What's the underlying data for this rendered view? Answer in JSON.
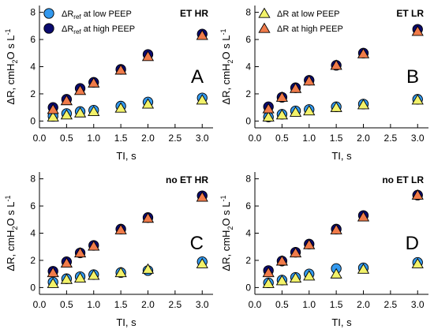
{
  "colors": {
    "low_circle": "#3399ee",
    "high_circle": "#0a0a6e",
    "low_triangle": "#f2f26a",
    "high_triangle": "#f07b4a"
  },
  "chart_data": [
    {
      "type": "scatter",
      "title": "ET HR",
      "panel_letter": "A",
      "xlabel": "TI, s",
      "ylabel": "ΔR, cmH2O s L-1",
      "xlim": [
        0,
        3.2
      ],
      "ylim": [
        -0.5,
        8.5
      ],
      "xticks": [
        "0.0",
        "0.5",
        "1.0",
        "1.5",
        "2.0",
        "2.5",
        "3.0"
      ],
      "yticks": [
        "0",
        "2",
        "4",
        "6",
        "8"
      ],
      "legend": {
        "position": "top-left",
        "entries": [
          "ΔRref at low PEEP",
          "ΔRref at high PEEP"
        ]
      },
      "x": [
        0.25,
        0.5,
        0.75,
        1.0,
        1.5,
        2.0,
        3.0
      ],
      "series": [
        {
          "name": "ΔRref at low PEEP",
          "marker": "circle",
          "color_key": "low_circle",
          "values": [
            0.35,
            0.55,
            0.7,
            0.8,
            1.1,
            1.4,
            1.7
          ]
        },
        {
          "name": "ΔRref at high PEEP",
          "marker": "circle",
          "color_key": "high_circle",
          "values": [
            1.0,
            1.6,
            2.4,
            2.85,
            3.8,
            4.9,
            6.4
          ]
        },
        {
          "marker": "triangle",
          "color_key": "low_triangle",
          "values": [
            0.3,
            0.45,
            0.6,
            0.7,
            0.95,
            1.25,
            1.55
          ]
        },
        {
          "marker": "triangle",
          "color_key": "high_triangle",
          "values": [
            0.85,
            1.5,
            2.25,
            2.8,
            3.75,
            4.75,
            6.3
          ]
        }
      ]
    },
    {
      "type": "scatter",
      "title": "ET LR",
      "panel_letter": "B",
      "xlabel": "TI, s",
      "ylabel": "ΔR, cmH2O s L-1",
      "xlim": [
        0,
        3.2
      ],
      "ylim": [
        -0.5,
        8.5
      ],
      "xticks": [
        "0.0",
        "0.5",
        "1.0",
        "1.5",
        "2.0",
        "2.5",
        "3.0"
      ],
      "yticks": [
        "0",
        "2",
        "4",
        "6",
        "8"
      ],
      "legend": {
        "position": "top-left",
        "entries": [
          "ΔR at low PEEP",
          "ΔR at high PEEP"
        ]
      },
      "x": [
        0.25,
        0.5,
        0.75,
        1.0,
        1.5,
        2.0,
        3.0
      ],
      "series": [
        {
          "marker": "circle",
          "color_key": "low_circle",
          "values": [
            0.3,
            0.5,
            0.75,
            0.85,
            1.05,
            1.25,
            1.6
          ]
        },
        {
          "marker": "circle",
          "color_key": "high_circle",
          "values": [
            1.05,
            1.75,
            2.45,
            3.0,
            4.1,
            5.0,
            6.75
          ]
        },
        {
          "name": "ΔR at low PEEP",
          "marker": "triangle",
          "color_key": "low_triangle",
          "values": [
            0.3,
            0.45,
            0.65,
            0.75,
            1.0,
            1.2,
            1.55
          ]
        },
        {
          "name": "ΔR at high PEEP",
          "marker": "triangle",
          "color_key": "high_triangle",
          "values": [
            0.9,
            1.75,
            2.4,
            2.95,
            4.1,
            4.95,
            6.6
          ]
        }
      ]
    },
    {
      "type": "scatter",
      "title": "no ET HR",
      "panel_letter": "C",
      "xlabel": "TI, s",
      "ylabel": "ΔR, cmH2O s L-1",
      "xlim": [
        0,
        3.2
      ],
      "ylim": [
        -0.5,
        8.5
      ],
      "xticks": [
        "0.0",
        "0.5",
        "1.0",
        "1.5",
        "2.0",
        "2.5",
        "3.0"
      ],
      "yticks": [
        "0",
        "2",
        "4",
        "6",
        "8"
      ],
      "x": [
        0.25,
        0.5,
        0.75,
        1.0,
        1.5,
        2.0,
        3.0
      ],
      "series": [
        {
          "marker": "circle",
          "color_key": "low_circle",
          "values": [
            0.4,
            0.65,
            0.8,
            0.95,
            1.1,
            1.25,
            1.9
          ]
        },
        {
          "marker": "circle",
          "color_key": "high_circle",
          "values": [
            1.2,
            1.9,
            2.55,
            3.1,
            4.3,
            5.15,
            6.75
          ]
        },
        {
          "marker": "triangle",
          "color_key": "low_triangle",
          "values": [
            0.3,
            0.6,
            0.7,
            0.9,
            1.1,
            1.35,
            1.75
          ]
        },
        {
          "marker": "triangle",
          "color_key": "high_triangle",
          "values": [
            1.1,
            1.8,
            2.55,
            3.05,
            4.25,
            5.1,
            6.65
          ]
        }
      ]
    },
    {
      "type": "scatter",
      "title": "no ET LR",
      "panel_letter": "D",
      "xlabel": "TI, s",
      "ylabel": "ΔR, cmH2O s L-1",
      "xlim": [
        0,
        3.2
      ],
      "ylim": [
        -0.5,
        8.5
      ],
      "xticks": [
        "0.0",
        "0.5",
        "1.0",
        "1.5",
        "2.0",
        "2.5",
        "3.0"
      ],
      "yticks": [
        "0",
        "2",
        "4",
        "6",
        "8"
      ],
      "x": [
        0.25,
        0.5,
        0.75,
        1.0,
        1.5,
        2.0,
        3.0
      ],
      "series": [
        {
          "marker": "circle",
          "color_key": "low_circle",
          "values": [
            0.35,
            0.55,
            0.75,
            1.0,
            1.4,
            1.45,
            1.85
          ]
        },
        {
          "marker": "circle",
          "color_key": "high_circle",
          "values": [
            1.25,
            1.95,
            2.6,
            3.2,
            4.3,
            5.3,
            6.8
          ]
        },
        {
          "marker": "triangle",
          "color_key": "low_triangle",
          "values": [
            0.3,
            0.5,
            0.7,
            0.85,
            1.0,
            1.35,
            1.75
          ]
        },
        {
          "marker": "triangle",
          "color_key": "high_triangle",
          "values": [
            1.1,
            1.95,
            2.55,
            3.15,
            4.25,
            5.2,
            6.8
          ]
        }
      ]
    }
  ]
}
